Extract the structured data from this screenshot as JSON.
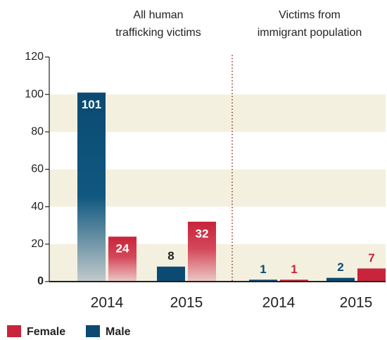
{
  "chart_data": {
    "type": "bar",
    "groups": [
      {
        "title": [
          "All human",
          "trafficking victims"
        ],
        "categories": [
          "2014",
          "2015"
        ]
      },
      {
        "title": [
          "Victims from",
          "immigrant population"
        ],
        "categories": [
          "2014",
          "2015"
        ]
      }
    ],
    "series": [
      {
        "name": "Male",
        "color": "#0b4a72",
        "values": [
          101,
          8,
          1,
          2
        ]
      },
      {
        "name": "Female",
        "color": "#c8243b",
        "values": [
          24,
          32,
          1,
          7
        ]
      }
    ],
    "ylim": [
      0,
      120
    ],
    "yticks": [
      0,
      20,
      40,
      60,
      80,
      100,
      120
    ],
    "grid": "bands"
  }
}
